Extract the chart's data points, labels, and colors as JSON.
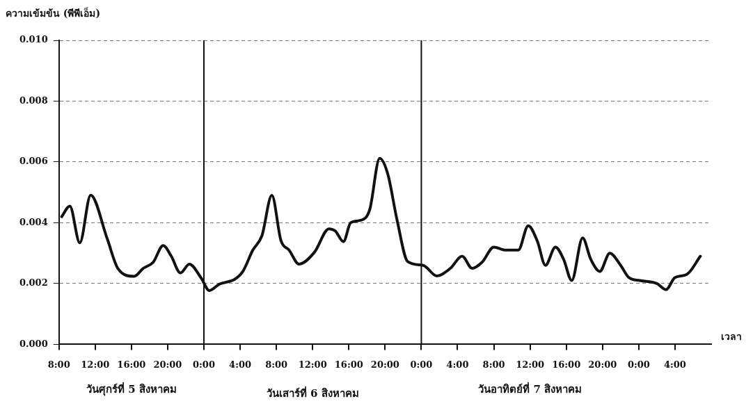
{
  "chart_data": {
    "type": "line",
    "ylabel": "ความเข้มข้น (พีพีเอ็ม)",
    "xlabel": "เวลา",
    "annotations": [
      "วันศุกร์ที่ 5 สิงหาคม",
      "วันเสาร์ที่ 6 สิงหาคม",
      "วันอาทิตย์ที่ 7 สิงหาคม"
    ],
    "x": [
      "--08-05T08:18",
      "--08-05T09:12",
      "--08-05T10:18",
      "--08-05T11:30",
      "--08-05T13:18",
      "--08-05T14:30",
      "--08-05T16:18",
      "--08-05T17:18",
      "--08-05T18:24",
      "--08-05T19:30",
      "--08-05T20:24",
      "--08-05T21:24",
      "--08-05T22:24",
      "--08-05T23:42",
      "--08-06T00:36",
      "--08-06T01:42",
      "--08-06T03:24",
      "--08-06T04:18",
      "--08-06T05:24",
      "--08-06T06:24",
      "--08-06T07:30",
      "--08-06T08:30",
      "--08-06T09:24",
      "--08-06T10:30",
      "--08-06T12:12",
      "--08-06T13:48",
      "--08-06T14:30",
      "--08-06T15:24",
      "--08-06T16:12",
      "--08-06T17:18",
      "--08-06T18:18",
      "--08-06T19:24",
      "--08-06T20:18",
      "--08-06T21:18",
      "--08-06T22:30",
      "--08-07T00:12",
      "--08-07T01:42",
      "--08-07T03:12",
      "--08-07T04:30",
      "--08-07T05:36",
      "--08-07T06:42",
      "--08-07T08:00",
      "--08-07T09:18",
      "--08-07T10:42",
      "--08-07T11:48",
      "--08-07T12:48",
      "--08-07T13:42",
      "--08-07T14:48",
      "--08-07T15:42",
      "--08-07T16:36",
      "--08-07T17:48",
      "--08-07T18:42",
      "--08-07T19:42",
      "--08-07T20:48",
      "--08-07T22:00",
      "--08-07T22:54",
      "--08-08T00:06",
      "--08-08T02:00",
      "--08-08T03:00",
      "--08-08T04:00",
      "--08-08T05:18",
      "--08-08T06:48"
    ],
    "values": [
      0.0042,
      0.00455,
      0.00334,
      0.00491,
      0.0035,
      0.0025,
      0.00224,
      0.0025,
      0.0027,
      0.00325,
      0.0029,
      0.00235,
      0.00264,
      0.00218,
      0.00177,
      0.00198,
      0.00214,
      0.0024,
      0.0031,
      0.00357,
      0.0049,
      0.00342,
      0.0031,
      0.00264,
      0.00303,
      0.0038,
      0.00373,
      0.00338,
      0.004,
      0.00408,
      0.00443,
      0.00612,
      0.0056,
      0.00412,
      0.00272,
      0.0026,
      0.00225,
      0.0025,
      0.0029,
      0.0025,
      0.0027,
      0.0032,
      0.0031,
      0.0031,
      0.0039,
      0.0034,
      0.0026,
      0.0032,
      0.0028,
      0.0021,
      0.0035,
      0.0028,
      0.0024,
      0.003,
      0.0026,
      0.0022,
      0.0021,
      0.002,
      0.0018,
      0.0022,
      0.0023,
      0.0029
    ],
    "color": "#111111",
    "marker": "none",
    "line_style": "solid",
    "grid": "y",
    "legend": false,
    "xlim": [
      "--08-05T08:00",
      "--08-08T08:00"
    ],
    "xticks": [
      {
        "value": "--08-05T08:00",
        "label": "8:00"
      },
      {
        "value": "--08-05T12:00",
        "label": "12:00"
      },
      {
        "value": "--08-05T16:00",
        "label": "16:00"
      },
      {
        "value": "--08-05T20:00",
        "label": "20:00"
      },
      {
        "value": "--08-06T00:00",
        "label": "0:00"
      },
      {
        "value": "--08-06T04:00",
        "label": "4:00"
      },
      {
        "value": "--08-06T08:00",
        "label": "8:00"
      },
      {
        "value": "--08-06T12:00",
        "label": "12:00"
      },
      {
        "value": "--08-06T16:00",
        "label": "16:00"
      },
      {
        "value": "--08-06T20:00",
        "label": "20:00"
      },
      {
        "value": "--08-07T00:00",
        "label": "0:00"
      },
      {
        "value": "--08-07T04:00",
        "label": "4:00"
      },
      {
        "value": "--08-07T08:00",
        "label": "8:00"
      },
      {
        "value": "--08-07T12:00",
        "label": "12:00"
      },
      {
        "value": "--08-07T16:00",
        "label": "16:00"
      },
      {
        "value": "--08-07T20:00",
        "label": "20:00"
      },
      {
        "value": "--08-08T00:00",
        "label": "0:00"
      },
      {
        "value": "--08-08T04:00",
        "label": "4:00"
      }
    ],
    "ylim": [
      0,
      0.01
    ],
    "yticks": [
      {
        "value": 0,
        "label": "0.000"
      },
      {
        "value": 0.002,
        "label": "0.002"
      },
      {
        "value": 0.004,
        "label": "0.004"
      },
      {
        "value": 0.006,
        "label": "0.006"
      },
      {
        "value": 0.008,
        "label": "0.008"
      },
      {
        "value": 0.01,
        "label": "0.010"
      }
    ],
    "ref_lines": [
      {
        "axis": "x",
        "value": "--08-06T00:00",
        "color": "#111111"
      },
      {
        "axis": "x",
        "value": "--08-07T00:00",
        "color": "#111111"
      }
    ]
  }
}
